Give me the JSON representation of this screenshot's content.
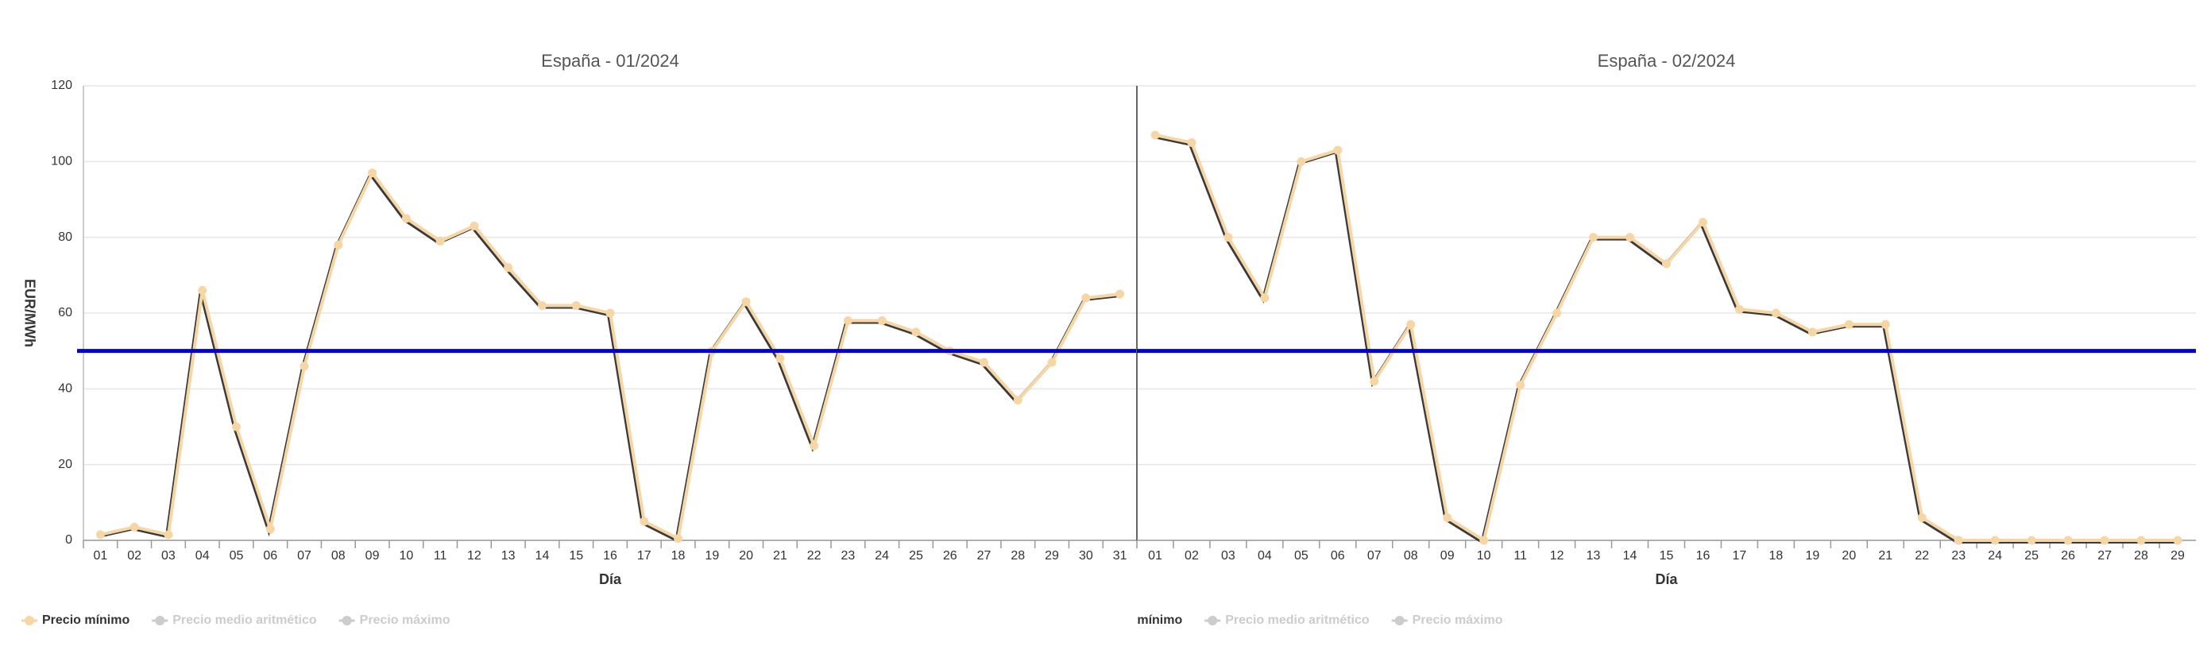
{
  "chart_data": [
    {
      "type": "line",
      "title": "España - 01/2024",
      "x_label": "Día",
      "y_label": "EUR/MWh",
      "categories": [
        "01",
        "02",
        "03",
        "04",
        "05",
        "06",
        "07",
        "08",
        "09",
        "10",
        "11",
        "12",
        "13",
        "14",
        "15",
        "16",
        "17",
        "18",
        "19",
        "20",
        "21",
        "22",
        "23",
        "24",
        "25",
        "26",
        "27",
        "28",
        "29",
        "30",
        "31"
      ],
      "series": [
        {
          "name": "Precio mínimo",
          "color": "#f7d6a6",
          "values": [
            1.5,
            3.5,
            1.5,
            66,
            30,
            3,
            46,
            78,
            97,
            85,
            79,
            83,
            72,
            62,
            62,
            60,
            5,
            0.5,
            50,
            63,
            48,
            25,
            58,
            58,
            55,
            50,
            47,
            37,
            47,
            64,
            65
          ]
        },
        {
          "name": "Precio medio aritmético",
          "color": "#cccccc",
          "visible": false
        },
        {
          "name": "Precio máximo",
          "color": "#cccccc",
          "visible": false
        }
      ],
      "reference_line": {
        "value": 50,
        "color": "#0000dd"
      },
      "ylim": [
        0,
        120
      ],
      "yticks": [
        0,
        20,
        40,
        60,
        80,
        100,
        120
      ],
      "grid": true
    },
    {
      "type": "line",
      "title": "España - 02/2024",
      "x_label": "Día",
      "categories": [
        "01",
        "02",
        "03",
        "04",
        "05",
        "06",
        "07",
        "08",
        "09",
        "10",
        "11",
        "12",
        "13",
        "14",
        "15",
        "16",
        "17",
        "18",
        "19",
        "20",
        "21",
        "22",
        "23",
        "24",
        "25",
        "26",
        "27",
        "28",
        "29"
      ],
      "series": [
        {
          "name": "Precio mínimo",
          "color": "#f7d6a6",
          "values": [
            107,
            105,
            80,
            64,
            100,
            103,
            42,
            57,
            6,
            0,
            41,
            60,
            80,
            80,
            73,
            84,
            61,
            60,
            55,
            57,
            57,
            6,
            0,
            0,
            0,
            0,
            0,
            0,
            0
          ]
        },
        {
          "name": "Precio medio aritmético",
          "color": "#cccccc",
          "visible": false
        },
        {
          "name": "Precio máximo",
          "color": "#cccccc",
          "visible": false
        }
      ],
      "reference_line": {
        "value": 50,
        "color": "#0000dd"
      },
      "ylim": [
        0,
        120
      ],
      "yticks": [
        0,
        20,
        40,
        60,
        80,
        100,
        120
      ],
      "grid": true
    }
  ]
}
